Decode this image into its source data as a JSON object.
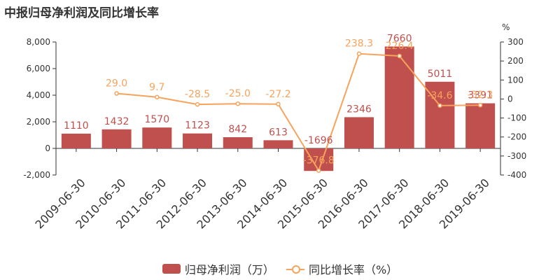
{
  "title": "中报归母净利润及同比增长率",
  "colors": {
    "bar": "#c0504d",
    "line": "#f7a35c",
    "axis_text": "#333333"
  },
  "chart_data": {
    "type": "bar",
    "categories": [
      "2009-06-30",
      "2010-06-30",
      "2011-06-30",
      "2012-06-30",
      "2013-06-30",
      "2014-06-30",
      "2015-06-30",
      "2016-06-30",
      "2017-06-30",
      "2018-06-30",
      "2019-06-30"
    ],
    "series": [
      {
        "name": "归母净利润（万）",
        "type": "bar",
        "axis": "left",
        "values": [
          1110,
          1432,
          1570,
          1123,
          842,
          613,
          -1696,
          2346,
          7660,
          5011,
          3391
        ],
        "labels": [
          "1110",
          "1432",
          "1570",
          "1123",
          "842",
          "613",
          "-1696",
          "2346",
          "7660",
          "5011",
          "3391"
        ]
      },
      {
        "name": "同比增长率（%）",
        "type": "line",
        "axis": "right",
        "values": [
          null,
          29.0,
          9.7,
          -28.5,
          -25.0,
          -27.2,
          -376.8,
          238.3,
          226.4,
          -34.6,
          -32.3
        ],
        "labels": [
          "",
          "29.0",
          "9.7",
          "-28.5",
          "-25.0",
          "-27.2",
          "-376.8",
          "238.3",
          "226.4",
          "-34.6",
          "-32.3"
        ]
      }
    ],
    "y_left": {
      "min": -2000,
      "max": 8000,
      "ticks": [
        -2000,
        0,
        2000,
        4000,
        6000,
        8000
      ],
      "tick_labels": [
        "-2,000",
        "0",
        "2,000",
        "4,000",
        "6,000",
        "8,000"
      ]
    },
    "y_right": {
      "min": -400,
      "max": 300,
      "ticks": [
        -400,
        -300,
        -200,
        -100,
        0,
        100,
        200,
        300
      ],
      "tick_labels": [
        "-400",
        "-300",
        "-200",
        "-100",
        "0",
        "100",
        "200",
        "300"
      ],
      "unit": "%"
    },
    "legend_position": "bottom",
    "grid": false
  }
}
